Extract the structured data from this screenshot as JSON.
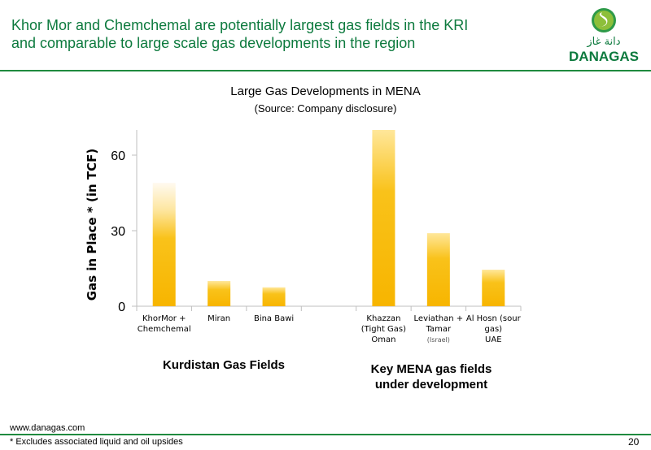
{
  "header": {
    "title_line1": "Khor Mor and Chemchemal are potentially largest gas fields in the KRI",
    "title_line2": "and comparable to large scale gas developments in the region",
    "logo_text": "DANAGAS",
    "logo_arabic": "دانة غاز"
  },
  "colors": {
    "title": "#0d7a3e",
    "rule": "#1f8a3f",
    "bar": "#f7b500",
    "bar_light": "#ffe089",
    "axis": "#bfbfbf"
  },
  "chart_data": {
    "type": "bar",
    "title": "Large Gas Developments in MENA",
    "subtitle": "(Source: Company disclosure)",
    "ylabel": "Gas in Place * (in TCF)",
    "ylim": [
      0,
      70
    ],
    "yticks": [
      "0",
      "30",
      "60"
    ],
    "yticks_values": [
      0,
      30,
      60
    ],
    "categories": [
      {
        "lines": [
          "KhorMor +",
          "Chemchemal"
        ],
        "note": ""
      },
      {
        "lines": [
          "Miran"
        ],
        "note": ""
      },
      {
        "lines": [
          "Bina Bawi"
        ],
        "note": ""
      },
      {
        "lines": [],
        "note": ""
      },
      {
        "lines": [
          "Khazzan",
          "(Tight Gas)",
          "Oman"
        ],
        "note": ""
      },
      {
        "lines": [
          "Leviathan +",
          "Tamar"
        ],
        "note": "(Israel)"
      },
      {
        "lines": [
          "Al Hosn (sour",
          "gas)",
          "UAE"
        ],
        "note": ""
      }
    ],
    "values": [
      49,
      10,
      7.5,
      null,
      70,
      29,
      14.5
    ],
    "group_labels": [
      {
        "text_line1": "Kurdistan Gas Fields",
        "text_line2": ""
      },
      {
        "text_line1": "Key MENA gas fields",
        "text_line2": "under development"
      }
    ],
    "grid": false
  },
  "footer": {
    "url": "www.danagas.com",
    "note": "* Excludes associated  liquid and oil upsides",
    "page": "20"
  }
}
